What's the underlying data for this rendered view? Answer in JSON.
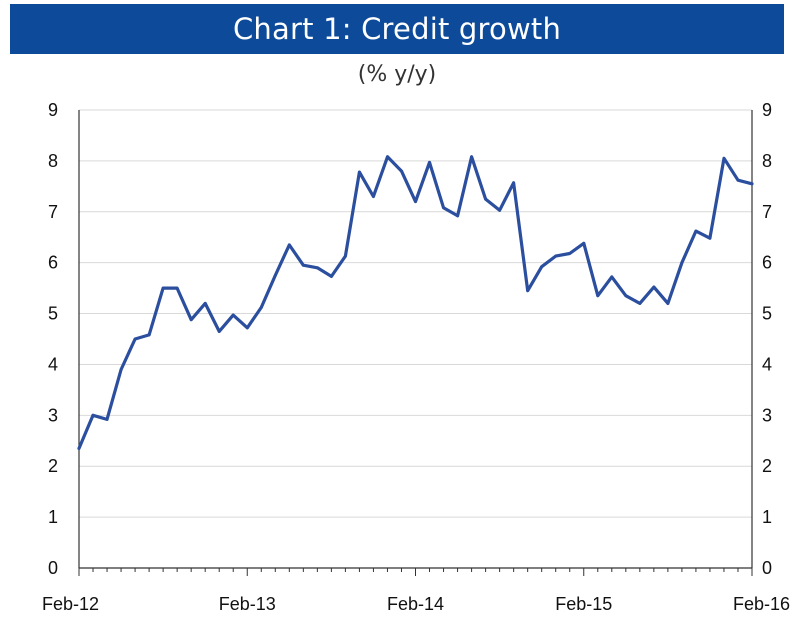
{
  "colors": {
    "title_background": "#0d4a9a",
    "title_text": "#ffffff",
    "series_line": "#2b4f9e",
    "gridline": "#d9d9d9",
    "axis": "#333333"
  },
  "chart_data": {
    "type": "line",
    "title": "Chart 1: Credit growth",
    "subtitle": "(% y/y)",
    "xlabel": "",
    "ylabel": "",
    "x_tick_labels": [
      "Feb-12",
      "Feb-13",
      "Feb-14",
      "Feb-15",
      "Feb-16"
    ],
    "y_ticks": [
      0,
      1,
      2,
      3,
      4,
      5,
      6,
      7,
      8,
      9
    ],
    "ylim": [
      0,
      9
    ],
    "y_axes": "left-and-right",
    "grid": true,
    "legend": "none",
    "series": [
      {
        "x": [
          "2012-02",
          "2012-03",
          "2012-04",
          "2012-05",
          "2012-06",
          "2012-07",
          "2012-08",
          "2012-09",
          "2012-10",
          "2012-11",
          "2012-12",
          "2013-01",
          "2013-02",
          "2013-03",
          "2013-04",
          "2013-05",
          "2013-06",
          "2013-07",
          "2013-08",
          "2013-09",
          "2013-10",
          "2013-11",
          "2013-12",
          "2014-01",
          "2014-02",
          "2014-03",
          "2014-04",
          "2014-05",
          "2014-06",
          "2014-07",
          "2014-08",
          "2014-09",
          "2014-10",
          "2014-11",
          "2014-12",
          "2015-01",
          "2015-02",
          "2015-03",
          "2015-04",
          "2015-05",
          "2015-06",
          "2015-07",
          "2015-08",
          "2015-09",
          "2015-10",
          "2015-11",
          "2015-12",
          "2016-01",
          "2016-02"
        ],
        "values": [
          2.35,
          3.0,
          2.92,
          3.9,
          4.5,
          4.58,
          5.5,
          5.5,
          4.88,
          5.2,
          4.65,
          4.97,
          4.72,
          5.12,
          5.75,
          6.35,
          5.95,
          5.9,
          5.73,
          6.13,
          7.78,
          7.3,
          8.08,
          7.8,
          7.2,
          7.97,
          7.08,
          6.92,
          8.08,
          7.25,
          7.03,
          7.57,
          5.45,
          5.92,
          6.13,
          6.18,
          6.38,
          5.35,
          5.72,
          5.35,
          5.2,
          5.52,
          5.2,
          6.0,
          6.62,
          6.48,
          8.05,
          7.62,
          7.55
        ]
      }
    ]
  }
}
